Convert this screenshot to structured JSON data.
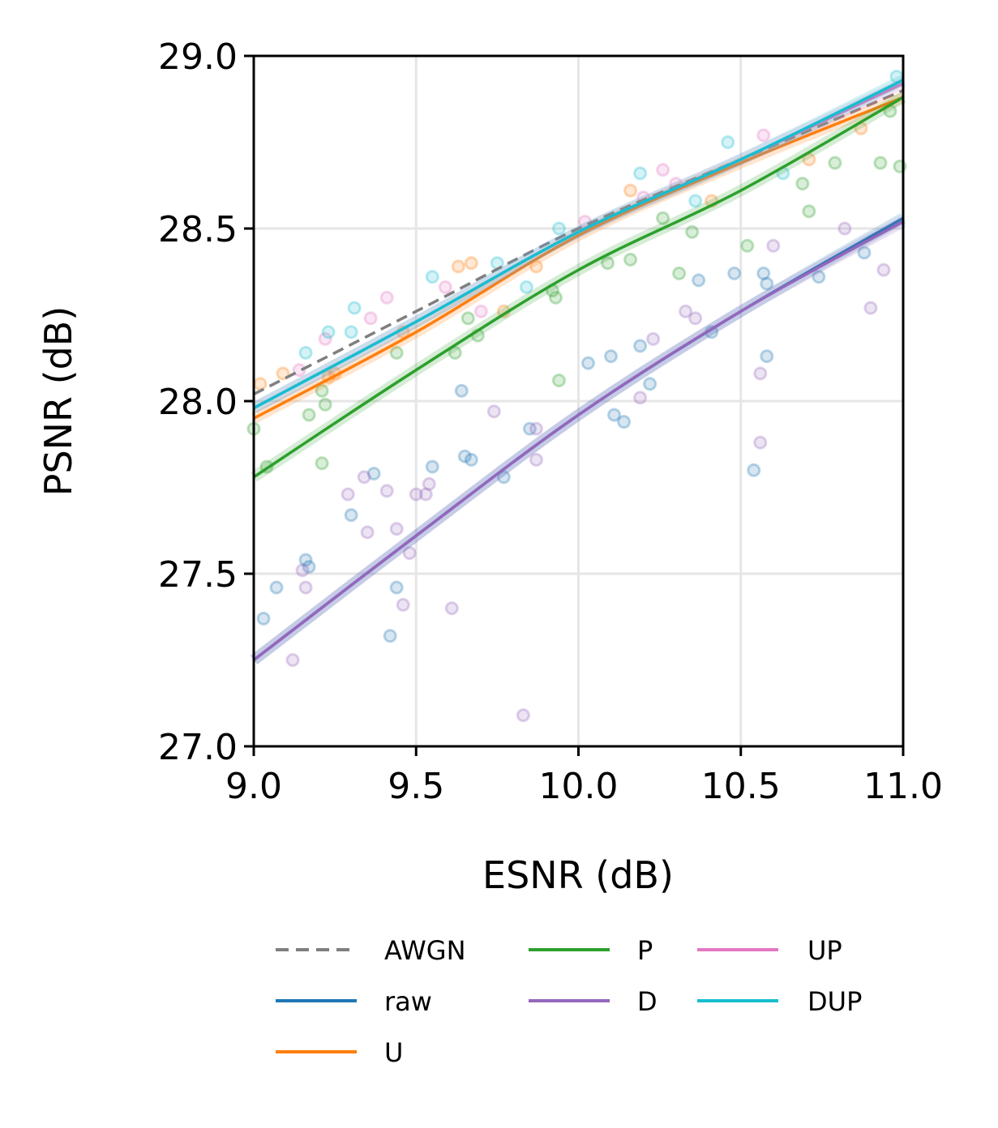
{
  "chart_data": {
    "type": "line",
    "title": "",
    "xlabel": "ESNR (dB)",
    "ylabel": "PSNR (dB)",
    "xlim": [
      9.0,
      11.0
    ],
    "ylim": [
      27.0,
      29.0
    ],
    "xticks": [
      "9.0",
      "9.5",
      "10.0",
      "10.5",
      "11.0"
    ],
    "yticks": [
      "27.0",
      "27.5",
      "28.0",
      "28.5",
      "29.0"
    ],
    "grid": true,
    "legend_position": "bottom",
    "legend_columns": 3,
    "series": [
      {
        "name": "AWGN",
        "color": "#7f7f7f",
        "dashed": true,
        "x": [
          9.0,
          9.5,
          10.0,
          10.5,
          11.0
        ],
        "y": [
          28.02,
          28.26,
          28.5,
          28.7,
          28.9
        ],
        "points": []
      },
      {
        "name": "raw",
        "color": "#1f77b4",
        "dashed": false,
        "x": [
          9.0,
          9.5,
          10.0,
          10.5,
          11.0
        ],
        "y": [
          27.25,
          27.61,
          27.96,
          28.26,
          28.53
        ],
        "points": [
          [
            9.07,
            27.46
          ],
          [
            9.03,
            27.37
          ],
          [
            9.16,
            27.54
          ],
          [
            9.17,
            27.52
          ],
          [
            9.3,
            27.67
          ],
          [
            9.37,
            27.79
          ],
          [
            9.42,
            27.32
          ],
          [
            9.44,
            27.46
          ],
          [
            9.55,
            27.81
          ],
          [
            9.64,
            28.03
          ],
          [
            9.65,
            27.84
          ],
          [
            9.67,
            27.83
          ],
          [
            9.77,
            27.78
          ],
          [
            9.85,
            27.92
          ],
          [
            10.03,
            28.11
          ],
          [
            10.1,
            28.13
          ],
          [
            10.11,
            27.96
          ],
          [
            10.14,
            27.94
          ],
          [
            10.19,
            28.16
          ],
          [
            10.22,
            28.05
          ],
          [
            10.37,
            28.35
          ],
          [
            10.41,
            28.2
          ],
          [
            10.48,
            28.37
          ],
          [
            10.54,
            27.8
          ],
          [
            10.57,
            28.37
          ],
          [
            10.58,
            28.34
          ],
          [
            10.58,
            28.13
          ],
          [
            10.74,
            28.36
          ],
          [
            10.88,
            28.43
          ]
        ]
      },
      {
        "name": "U",
        "color": "#ff7f0e",
        "dashed": false,
        "x": [
          9.0,
          9.5,
          10.0,
          10.5,
          11.0
        ],
        "y": [
          27.95,
          28.2,
          28.48,
          28.69,
          28.88
        ],
        "points": [
          [
            9.02,
            28.05
          ],
          [
            9.09,
            28.08
          ],
          [
            9.23,
            28.07
          ],
          [
            9.25,
            28.08
          ],
          [
            9.46,
            28.2
          ],
          [
            9.63,
            28.39
          ],
          [
            9.67,
            28.4
          ],
          [
            9.77,
            28.26
          ],
          [
            9.87,
            28.39
          ],
          [
            10.16,
            28.61
          ],
          [
            10.41,
            28.58
          ],
          [
            10.71,
            28.7
          ],
          [
            10.87,
            28.79
          ]
        ]
      },
      {
        "name": "P",
        "color": "#2ca02c",
        "dashed": false,
        "x": [
          9.0,
          9.5,
          10.0,
          10.5,
          11.0
        ],
        "y": [
          27.78,
          28.09,
          28.38,
          28.61,
          28.88
        ],
        "points": [
          [
            9.0,
            27.92
          ],
          [
            9.04,
            27.81
          ],
          [
            9.17,
            27.96
          ],
          [
            9.21,
            28.03
          ],
          [
            9.22,
            27.99
          ],
          [
            9.21,
            27.82
          ],
          [
            9.44,
            28.14
          ],
          [
            9.62,
            28.14
          ],
          [
            9.66,
            28.24
          ],
          [
            9.69,
            28.19
          ],
          [
            9.92,
            28.32
          ],
          [
            9.93,
            28.3
          ],
          [
            9.94,
            28.06
          ],
          [
            10.09,
            28.4
          ],
          [
            10.16,
            28.41
          ],
          [
            10.26,
            28.53
          ],
          [
            10.31,
            28.37
          ],
          [
            10.35,
            28.49
          ],
          [
            10.52,
            28.45
          ],
          [
            10.69,
            28.63
          ],
          [
            10.71,
            28.55
          ],
          [
            10.79,
            28.69
          ],
          [
            10.93,
            28.69
          ],
          [
            10.99,
            28.68
          ],
          [
            10.96,
            28.84
          ]
        ]
      },
      {
        "name": "D",
        "color": "#9467bd",
        "dashed": false,
        "x": [
          9.0,
          9.5,
          10.0,
          10.5,
          11.0
        ],
        "y": [
          27.25,
          27.61,
          27.96,
          28.26,
          28.52
        ],
        "points": [
          [
            9.12,
            27.25
          ],
          [
            9.15,
            27.51
          ],
          [
            9.16,
            27.46
          ],
          [
            9.29,
            27.73
          ],
          [
            9.35,
            27.62
          ],
          [
            9.34,
            27.78
          ],
          [
            9.41,
            27.74
          ],
          [
            9.44,
            27.63
          ],
          [
            9.46,
            27.41
          ],
          [
            9.48,
            27.56
          ],
          [
            9.5,
            27.73
          ],
          [
            9.53,
            27.73
          ],
          [
            9.54,
            27.76
          ],
          [
            9.61,
            27.4
          ],
          [
            9.74,
            27.97
          ],
          [
            9.83,
            27.09
          ],
          [
            9.87,
            27.83
          ],
          [
            9.87,
            27.92
          ],
          [
            10.19,
            28.01
          ],
          [
            10.23,
            28.18
          ],
          [
            10.33,
            28.26
          ],
          [
            10.36,
            28.24
          ],
          [
            10.56,
            28.08
          ],
          [
            10.56,
            27.88
          ],
          [
            10.6,
            28.45
          ],
          [
            10.82,
            28.5
          ],
          [
            10.9,
            28.27
          ],
          [
            10.94,
            28.38
          ]
        ]
      },
      {
        "name": "UP",
        "color": "#e377c2",
        "dashed": false,
        "x": [
          9.0,
          9.5,
          10.0,
          10.5,
          11.0
        ],
        "y": [
          27.98,
          28.23,
          28.49,
          28.7,
          28.92
        ],
        "points": [
          [
            9.14,
            28.09
          ],
          [
            9.22,
            28.18
          ],
          [
            9.41,
            28.3
          ],
          [
            9.36,
            28.24
          ],
          [
            9.59,
            28.33
          ],
          [
            9.7,
            28.26
          ],
          [
            10.02,
            28.52
          ],
          [
            10.2,
            28.59
          ],
          [
            10.26,
            28.67
          ],
          [
            10.3,
            28.63
          ],
          [
            10.57,
            28.77
          ]
        ]
      },
      {
        "name": "DUP",
        "color": "#17becf",
        "dashed": false,
        "x": [
          9.0,
          9.5,
          10.0,
          10.5,
          11.0
        ],
        "y": [
          27.98,
          28.23,
          28.49,
          28.7,
          28.93
        ],
        "points": [
          [
            9.16,
            28.14
          ],
          [
            9.23,
            28.2
          ],
          [
            9.3,
            28.2
          ],
          [
            9.31,
            28.27
          ],
          [
            9.55,
            28.36
          ],
          [
            9.75,
            28.4
          ],
          [
            9.84,
            28.33
          ],
          [
            9.94,
            28.5
          ],
          [
            10.19,
            28.66
          ],
          [
            10.36,
            28.58
          ],
          [
            10.46,
            28.75
          ],
          [
            10.63,
            28.66
          ],
          [
            10.98,
            28.94
          ]
        ]
      }
    ]
  }
}
